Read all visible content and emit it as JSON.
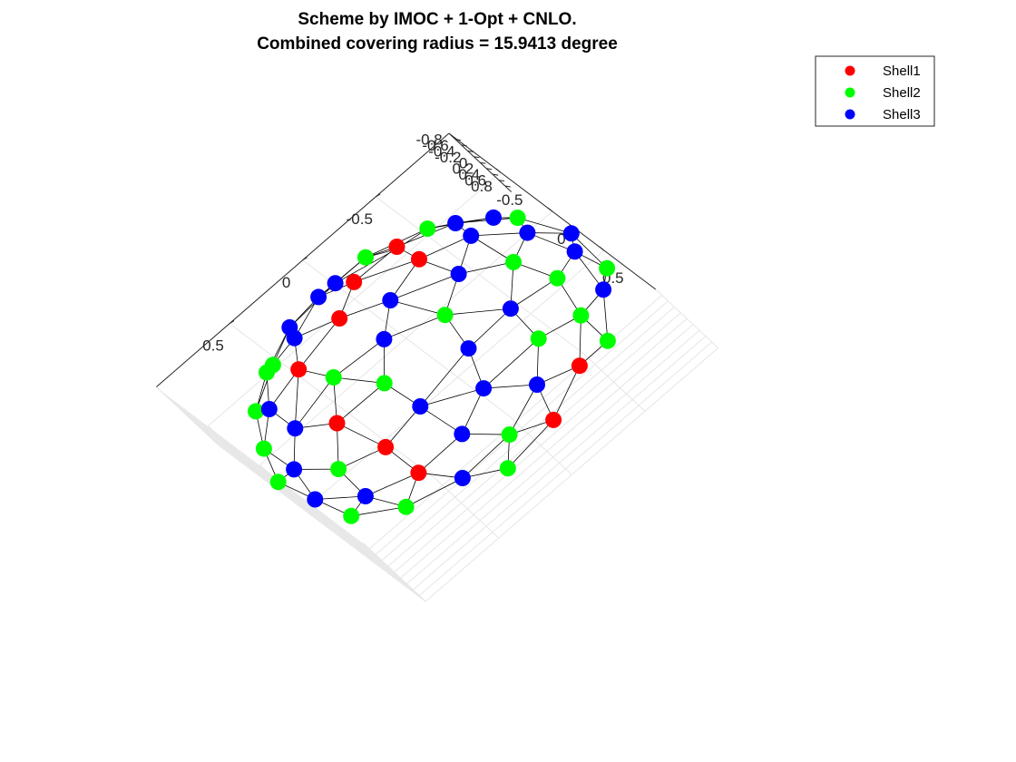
{
  "figure": {
    "title_line1": "Scheme by IMOC + 1-Opt + CNLO.",
    "title_line2": "Combined covering radius = 15.9413 degree"
  },
  "chart_data": {
    "type": "scatter",
    "subtype": "3d-scatter-on-triangulated-unit-sphere",
    "title": "Scheme by IMOC + 1-Opt + CNLO.\nCombined covering radius = 15.9413 degree",
    "xlabel": "",
    "ylabel": "",
    "zlabel": "",
    "xlim": [
      -1,
      1
    ],
    "ylim": [
      -1,
      1
    ],
    "zlim": [
      -1,
      1
    ],
    "grid": true,
    "legend_position": "top-right",
    "z_ticks": [
      "0.8",
      "0.6",
      "0.4",
      "0.2",
      "0",
      "-0.2",
      "-0.4",
      "-0.6",
      "-0.8"
    ],
    "x_ticks": [
      "0.5",
      "0",
      "-0.5"
    ],
    "y_ticks": [
      "0.5",
      "0",
      "-0.5"
    ],
    "sphere": {
      "face_color": "#cccccc",
      "edge_color": "#000000"
    },
    "series": [
      {
        "name": "Shell1",
        "color": "#ff0000",
        "count": 22
      },
      {
        "name": "Shell2",
        "color": "#00ff00",
        "count": 45
      },
      {
        "name": "Shell3",
        "color": "#0000ff",
        "count": 46
      }
    ]
  },
  "legend": {
    "items": [
      {
        "label": "Shell1",
        "color": "#ff0000"
      },
      {
        "label": "Shell2",
        "color": "#00ff00"
      },
      {
        "label": "Shell3",
        "color": "#0000ff"
      }
    ]
  }
}
